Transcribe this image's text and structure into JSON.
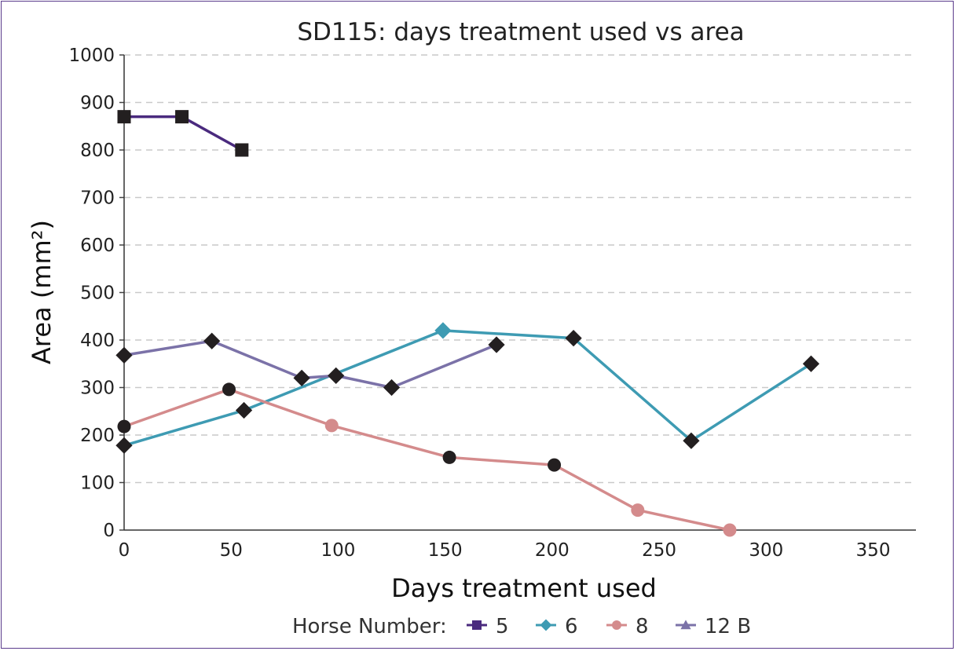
{
  "chart_data": {
    "type": "line",
    "title": "SD115: days treatment used vs area",
    "xlabel": "Days treatment used",
    "ylabel": "Area (mm²)",
    "xlim": [
      0,
      370
    ],
    "ylim": [
      0,
      1000
    ],
    "xticks": [
      0,
      50,
      100,
      150,
      200,
      250,
      300,
      350
    ],
    "yticks": [
      0,
      100,
      200,
      300,
      400,
      500,
      600,
      700,
      800,
      900,
      1000
    ],
    "grid": {
      "horizontal": true,
      "style": "dashed"
    },
    "legend": {
      "title": "Horse Number:",
      "placement": "bottom-center"
    },
    "series": [
      {
        "name": "5",
        "color": "#4a2a7e",
        "marker": "square",
        "points": [
          {
            "x": 0,
            "y": 870,
            "marker": "square",
            "markerColor": "#231f20"
          },
          {
            "x": 27,
            "y": 870,
            "marker": "square",
            "markerColor": "#231f20"
          },
          {
            "x": 55,
            "y": 800,
            "marker": "square",
            "markerColor": "#231f20"
          }
        ]
      },
      {
        "name": "6",
        "color": "#3e9bb3",
        "marker": "diamond",
        "points": [
          {
            "x": 0,
            "y": 178,
            "marker": "diamond",
            "markerColor": "#231f20"
          },
          {
            "x": 56,
            "y": 252,
            "marker": "diamond",
            "markerColor": "#231f20"
          },
          {
            "x": 149,
            "y": 420,
            "marker": "diamond",
            "markerColor": "#3e9bb3"
          },
          {
            "x": 210,
            "y": 404,
            "marker": "diamond",
            "markerColor": "#231f20"
          },
          {
            "x": 265,
            "y": 188,
            "marker": "diamond",
            "markerColor": "#231f20"
          },
          {
            "x": 321,
            "y": 350,
            "marker": "diamond",
            "markerColor": "#231f20"
          }
        ]
      },
      {
        "name": "8",
        "color": "#d48b8c",
        "marker": "circle",
        "points": [
          {
            "x": 0,
            "y": 218,
            "marker": "circle",
            "markerColor": "#231f20"
          },
          {
            "x": 49,
            "y": 296,
            "marker": "circle",
            "markerColor": "#231f20"
          },
          {
            "x": 97,
            "y": 220,
            "marker": "circle",
            "markerColor": "#d48b8c"
          },
          {
            "x": 152,
            "y": 153,
            "marker": "circle",
            "markerColor": "#231f20"
          },
          {
            "x": 201,
            "y": 137,
            "marker": "circle",
            "markerColor": "#231f20"
          },
          {
            "x": 240,
            "y": 42,
            "marker": "circle",
            "markerColor": "#d48b8c"
          },
          {
            "x": 283,
            "y": 0,
            "marker": "circle",
            "markerColor": "#d48b8c"
          }
        ]
      },
      {
        "name": "12 B",
        "color": "#7b72a8",
        "marker": "triangle",
        "points": [
          {
            "x": 0,
            "y": 368,
            "marker": "diamond",
            "markerColor": "#231f20"
          },
          {
            "x": 41,
            "y": 398,
            "marker": "diamond",
            "markerColor": "#231f20"
          },
          {
            "x": 83,
            "y": 320,
            "marker": "diamond",
            "markerColor": "#231f20"
          },
          {
            "x": 99,
            "y": 325,
            "marker": "diamond",
            "markerColor": "#231f20"
          },
          {
            "x": 125,
            "y": 300,
            "marker": "diamond",
            "markerColor": "#231f20"
          },
          {
            "x": 174,
            "y": 390,
            "marker": "diamond",
            "markerColor": "#231f20"
          }
        ]
      }
    ]
  }
}
